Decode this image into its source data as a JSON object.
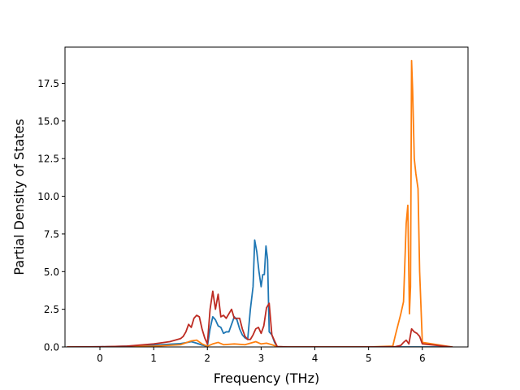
{
  "chart_data": {
    "type": "line",
    "title": "",
    "xlabel": "Frequency (THz)",
    "ylabel": "Partial Density of States",
    "xlim": [
      -0.65,
      6.85
    ],
    "ylim": [
      0,
      19.9
    ],
    "xticks": [
      0,
      1,
      2,
      3,
      4,
      5,
      6
    ],
    "xtick_labels": [
      "0",
      "1",
      "2",
      "3",
      "4",
      "5",
      "6"
    ],
    "yticks": [
      0.0,
      2.5,
      5.0,
      7.5,
      10.0,
      12.5,
      15.0,
      17.5
    ],
    "ytick_labels": [
      "0.0",
      "2.5",
      "5.0",
      "7.5",
      "10.0",
      "12.5",
      "15.0",
      "17.5"
    ],
    "grid": false,
    "legend": "none",
    "series": [
      {
        "color": "#1f77b4",
        "x": [
          -0.6,
          0.0,
          0.5,
          1.0,
          1.3,
          1.5,
          1.6,
          1.7,
          1.8,
          1.9,
          2.0,
          2.05,
          2.1,
          2.15,
          2.2,
          2.25,
          2.3,
          2.35,
          2.4,
          2.45,
          2.5,
          2.55,
          2.6,
          2.65,
          2.7,
          2.75,
          2.8,
          2.85,
          2.88,
          2.92,
          2.96,
          3.0,
          3.03,
          3.06,
          3.09,
          3.12,
          3.15,
          3.2,
          3.25,
          3.3,
          3.5,
          4.0,
          5.0,
          6.0,
          6.55
        ],
        "y": [
          0,
          0.01,
          0.05,
          0.12,
          0.18,
          0.22,
          0.28,
          0.35,
          0.25,
          0.12,
          0.05,
          1.2,
          2.0,
          1.8,
          1.4,
          1.3,
          0.9,
          1.0,
          1.0,
          1.5,
          2.0,
          1.8,
          1.2,
          0.8,
          0.6,
          0.5,
          2.5,
          4.0,
          7.1,
          6.3,
          5.0,
          4.0,
          4.8,
          4.8,
          6.7,
          5.8,
          1.0,
          0.8,
          0.3,
          0.02,
          0,
          0,
          0,
          0,
          0
        ]
      },
      {
        "color": "#ff7f0e",
        "x": [
          -0.6,
          0.0,
          1.0,
          1.5,
          1.7,
          1.8,
          1.9,
          2.0,
          2.1,
          2.2,
          2.3,
          2.5,
          2.7,
          2.9,
          3.0,
          3.1,
          3.2,
          3.3,
          3.5,
          4.0,
          5.0,
          5.45,
          5.5,
          5.55,
          5.6,
          5.65,
          5.7,
          5.73,
          5.76,
          5.78,
          5.8,
          5.82,
          5.85,
          5.88,
          5.92,
          5.95,
          6.0,
          6.55
        ],
        "y": [
          0,
          0,
          0.05,
          0.15,
          0.4,
          0.45,
          0.2,
          0.05,
          0.2,
          0.3,
          0.15,
          0.2,
          0.15,
          0.35,
          0.2,
          0.25,
          0.15,
          0.02,
          0,
          0,
          0,
          0.05,
          0.8,
          1.5,
          2.2,
          3.0,
          8.2,
          9.4,
          2.2,
          4.0,
          19.0,
          17.0,
          12.5,
          11.5,
          10.5,
          5.0,
          0.3,
          0
        ]
      },
      {
        "color": "#bd2b22",
        "x": [
          -0.6,
          0.0,
          0.5,
          1.0,
          1.3,
          1.5,
          1.55,
          1.6,
          1.65,
          1.7,
          1.75,
          1.8,
          1.85,
          1.9,
          1.95,
          2.0,
          2.05,
          2.1,
          2.15,
          2.2,
          2.25,
          2.3,
          2.35,
          2.4,
          2.45,
          2.5,
          2.55,
          2.6,
          2.65,
          2.7,
          2.75,
          2.8,
          2.85,
          2.9,
          2.95,
          3.0,
          3.05,
          3.1,
          3.15,
          3.2,
          3.25,
          3.3,
          3.5,
          4.0,
          5.0,
          5.5,
          5.6,
          5.65,
          5.7,
          5.75,
          5.8,
          5.85,
          5.9,
          5.95,
          6.0,
          6.55
        ],
        "y": [
          0,
          0.01,
          0.05,
          0.2,
          0.35,
          0.55,
          0.7,
          1.0,
          1.5,
          1.3,
          1.9,
          2.1,
          2.0,
          1.2,
          0.6,
          0.2,
          2.5,
          3.7,
          2.5,
          3.5,
          2.0,
          2.1,
          1.9,
          2.2,
          2.5,
          1.9,
          1.9,
          1.9,
          1.2,
          0.7,
          0.5,
          0.5,
          0.8,
          1.2,
          1.3,
          0.9,
          1.4,
          2.6,
          2.9,
          0.8,
          0.4,
          0.02,
          0,
          0,
          0,
          0.02,
          0.1,
          0.3,
          0.45,
          0.2,
          1.2,
          1.0,
          0.9,
          0.7,
          0.2,
          0
        ]
      }
    ]
  }
}
